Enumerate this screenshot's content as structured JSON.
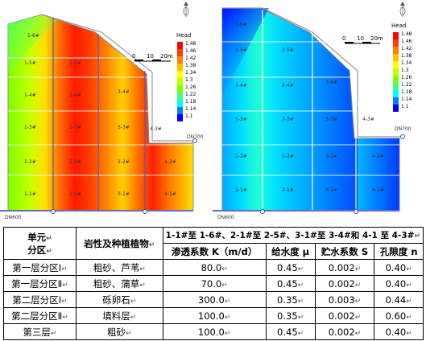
{
  "maps": [
    {
      "id": "head-map-1",
      "labels": [
        "1-6#",
        "1-5#",
        "1-4#",
        "1-3#",
        "1-2#",
        "1-1#",
        "2-5#",
        "2-4#",
        "2-3#",
        "2-2#",
        "2-1#",
        "3-4#",
        "3-3#",
        "3-2#",
        "3-1#",
        "4-3#",
        "4-2#",
        "4-1#"
      ],
      "pipe_label_right": "DN700",
      "pipe_label_left": "DN600",
      "scale_ticks": [
        "0",
        "10",
        "20m"
      ],
      "legend_title": "Head",
      "legend_values": [
        "1.48",
        "1.46",
        "1.42",
        "1.38",
        "1.34",
        "1.3",
        "1.26",
        "1.22",
        "1.18",
        "1.14",
        "1.1"
      ],
      "legend_colors": [
        "#ff0000",
        "#ff4000",
        "#ff8000",
        "#ffbf00",
        "#ffff00",
        "#bfff00",
        "#80ff00",
        "#40ff80",
        "#00ffff",
        "#0080ff",
        "#0000ff"
      ]
    },
    {
      "id": "head-map-2",
      "labels": [
        "1-6#",
        "1-5#",
        "1-4#",
        "1-3#",
        "1-2#",
        "1-1#",
        "2-5#",
        "2-4#",
        "2-3#",
        "2-2#",
        "2-1#",
        "3-4#",
        "3-3#",
        "3-2#",
        "3-1#",
        "4-3#",
        "4-2#",
        "4-1#"
      ],
      "pipe_label_right": "DN700",
      "pipe_label_left": "DN600",
      "scale_ticks": [
        "0",
        "10",
        "20m"
      ],
      "legend_title": "Head",
      "legend_values": [
        "1.48",
        "1.46",
        "1.42",
        "1.38",
        "1.34",
        "1.3",
        "1.26",
        "1.22",
        "1.18",
        "1.14",
        "1.1"
      ],
      "legend_colors": [
        "#ff0000",
        "#ff4000",
        "#ff8000",
        "#ffbf00",
        "#ffff00",
        "#bfff00",
        "#80ff00",
        "#40ff80",
        "#00ffff",
        "#0080ff",
        "#0000ff"
      ]
    }
  ],
  "table": {
    "h_unit": "单元",
    "h_zone": "分区",
    "h_rock": "岩性及种植植物",
    "h_span": "1-1#至 1-6#、2-1#至 2-5#、3-1#至 3-4#和 4-1 至 4-3#",
    "h_k": "渗透系数 K（m/d）",
    "h_mu": "给水度 μ",
    "h_s": "贮水系数 S",
    "h_n": "孔隙度 n",
    "rows": [
      {
        "zone": "第一层分区Ⅰ",
        "rock": "粗砂、芦苇",
        "k": "80.0",
        "mu": "0.45",
        "s": "0.002",
        "n": "0.40"
      },
      {
        "zone": "第一层分区Ⅱ",
        "rock": "粗砂、蒲草",
        "k": "70.0",
        "mu": "0.45",
        "s": "0.002",
        "n": "0.40"
      },
      {
        "zone": "第二层分区Ⅰ",
        "rock": "砾卵石",
        "k": "300.0",
        "mu": "0.35",
        "s": "0.003",
        "n": "0.44"
      },
      {
        "zone": "第二层分区Ⅱ",
        "rock": "填料层",
        "k": "100.0",
        "mu": "0.35",
        "s": "0.002",
        "n": "0.60"
      },
      {
        "zone": "第三层",
        "rock": "粗砂",
        "k": "100.0",
        "mu": "0.45",
        "s": "0.002",
        "n": "0.40"
      }
    ]
  }
}
